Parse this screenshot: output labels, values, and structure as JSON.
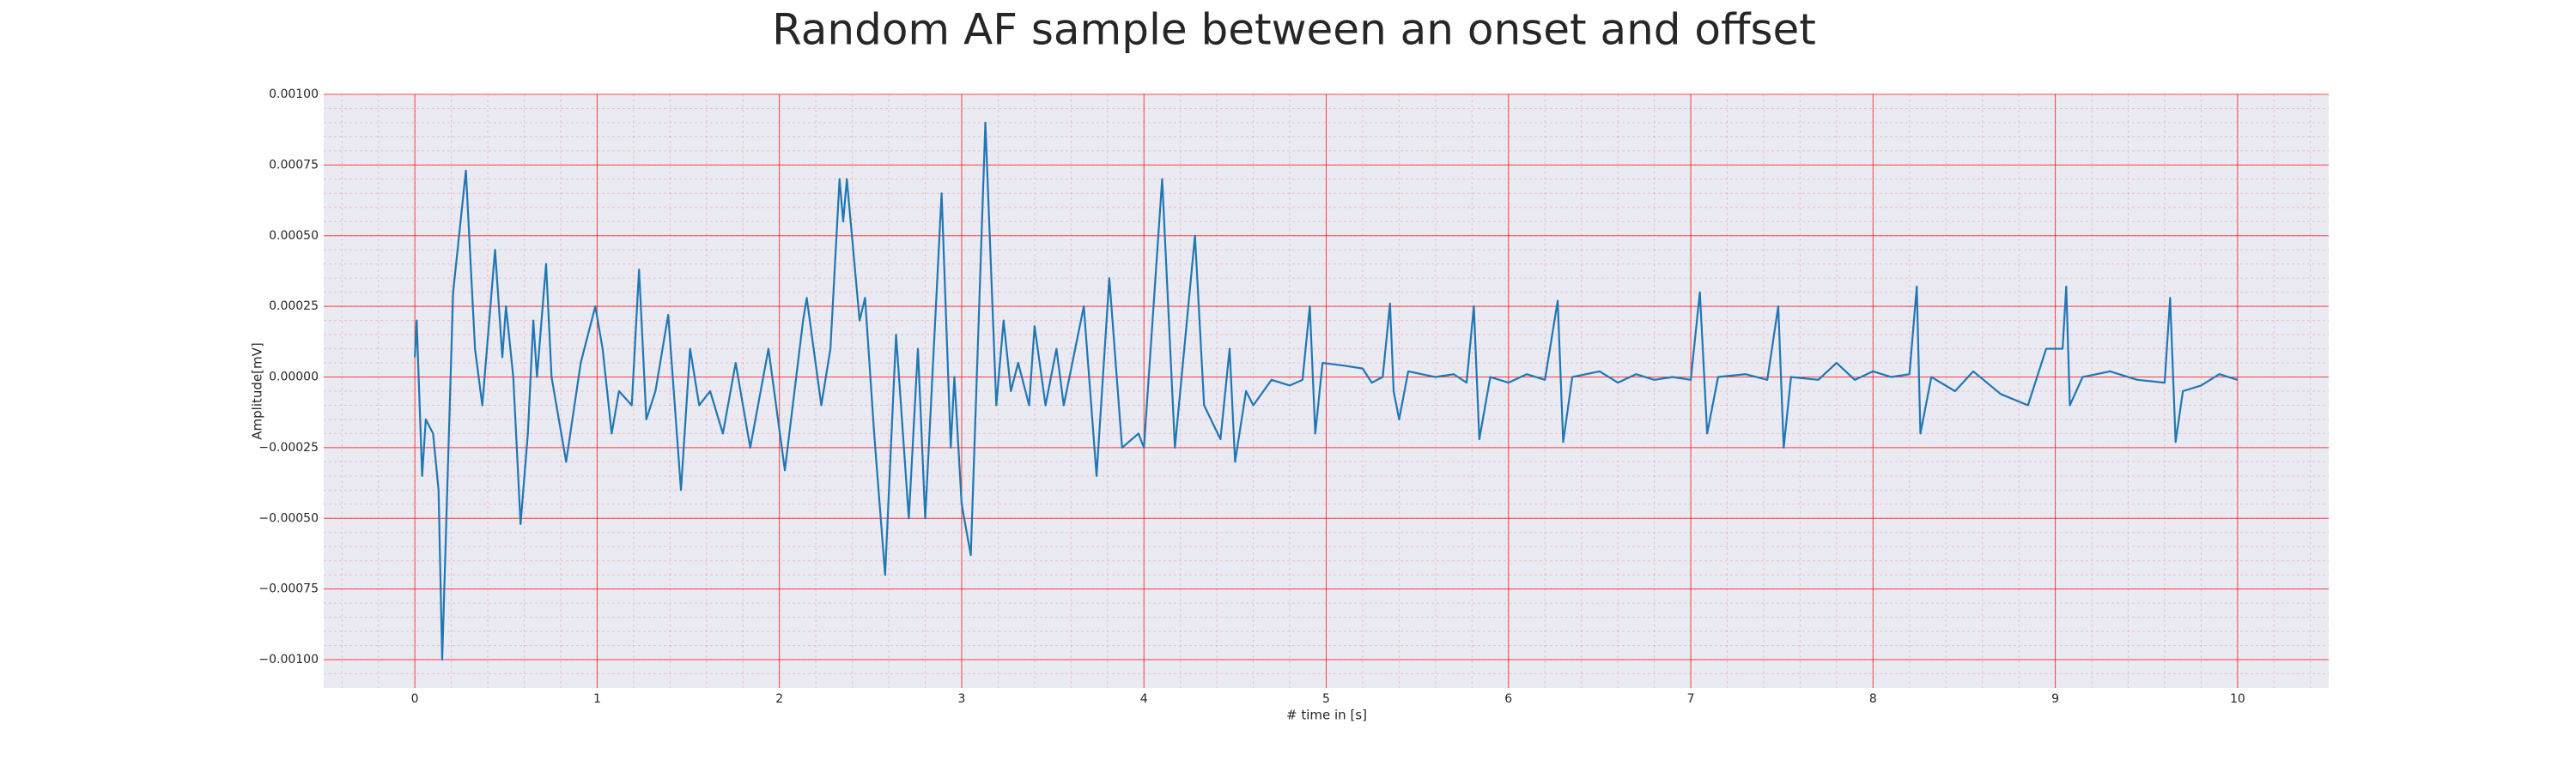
{
  "chart_data": {
    "type": "line",
    "title": "Random AF sample between an onset and offset",
    "xlabel": "# time in [s]",
    "ylabel": "Amplitude[mV]",
    "xlim": [
      -0.5,
      10.5
    ],
    "ylim": [
      -0.0011,
      0.001
    ],
    "xticks": [
      0,
      1,
      2,
      3,
      4,
      5,
      6,
      7,
      8,
      9,
      10
    ],
    "yticks": [
      {
        "value": -0.001,
        "label": "−0.00100"
      },
      {
        "value": -0.00075,
        "label": "−0.00075"
      },
      {
        "value": -0.0005,
        "label": "−0.00050"
      },
      {
        "value": -0.00025,
        "label": "−0.00025"
      },
      {
        "value": 0,
        "label": "0.00000"
      },
      {
        "value": 0.00025,
        "label": "0.00025"
      },
      {
        "value": 0.0005,
        "label": "0.00050"
      },
      {
        "value": 0.00075,
        "label": "0.00075"
      },
      {
        "value": 0.001,
        "label": "0.00100"
      }
    ],
    "grid": true,
    "grid_color": "#ff0000",
    "minor_grid": 5,
    "background": "#eaeaf2",
    "x": [
      0,
      0.01,
      0.04,
      0.06,
      0.1,
      0.13,
      0.15,
      0.21,
      0.28,
      0.33,
      0.37,
      0.44,
      0.48,
      0.5,
      0.54,
      0.58,
      0.62,
      0.65,
      0.67,
      0.72,
      0.75,
      0.83,
      0.91,
      0.99,
      1.03,
      1.08,
      1.12,
      1.19,
      1.23,
      1.27,
      1.32,
      1.39,
      1.46,
      1.51,
      1.56,
      1.62,
      1.69,
      1.76,
      1.8,
      1.84,
      1.94,
      2.03,
      2.13,
      2.15,
      2.23,
      2.28,
      2.33,
      2.35,
      2.37,
      2.44,
      2.47,
      2.52,
      2.58,
      2.64,
      2.71,
      2.76,
      2.8,
      2.89,
      2.94,
      2.96,
      3.0,
      3.05,
      3.13,
      3.19,
      3.23,
      3.27,
      3.31,
      3.37,
      3.4,
      3.46,
      3.52,
      3.56,
      3.67,
      3.74,
      3.81,
      3.88,
      3.97,
      4.0,
      4.1,
      4.17,
      4.28,
      4.33,
      4.42,
      4.47,
      4.5,
      4.56,
      4.6,
      4.7,
      4.8,
      4.87,
      4.91,
      4.94,
      4.98,
      5.1,
      5.2,
      5.25,
      5.31,
      5.35,
      5.37,
      5.4,
      5.45,
      5.6,
      5.7,
      5.77,
      5.81,
      5.84,
      5.9,
      6.0,
      6.1,
      6.2,
      6.27,
      6.3,
      6.35,
      6.5,
      6.6,
      6.7,
      6.8,
      6.9,
      7.0,
      7.05,
      7.09,
      7.15,
      7.3,
      7.42,
      7.48,
      7.51,
      7.55,
      7.7,
      7.8,
      7.9,
      8.0,
      8.1,
      8.2,
      8.24,
      8.26,
      8.32,
      8.45,
      8.55,
      8.7,
      8.85,
      8.95,
      9.04,
      9.06,
      9.08,
      9.15,
      9.3,
      9.45,
      9.6,
      9.63,
      9.66,
      9.7,
      9.8,
      9.9,
      10.0
    ],
    "series": [
      {
        "color": "#1f77b4",
        "values": [
          7e-05,
          0.0002,
          -0.00035,
          -0.00015,
          -0.0002,
          -0.0004,
          -0.001,
          0.0003,
          0.00073,
          0.0001,
          -0.0001,
          0.00045,
          7e-05,
          0.00025,
          0,
          -0.00052,
          -0.0002,
          0.0002,
          0,
          0.0004,
          0,
          -0.0003,
          5e-05,
          0.00025,
          0.0001,
          -0.0002,
          -5e-05,
          -0.0001,
          0.00038,
          -0.00015,
          -5e-05,
          0.00022,
          -0.0004,
          0.0001,
          -0.0001,
          -5e-05,
          -0.0002,
          5e-05,
          -0.0001,
          -0.00025,
          0.0001,
          -0.00033,
          0.0002,
          0.00028,
          -0.0001,
          0.0001,
          0.0007,
          0.00055,
          0.0007,
          0.0002,
          0.00028,
          -0.0002,
          -0.0007,
          0.00015,
          -0.0005,
          0.0001,
          -0.0005,
          0.00065,
          -0.00025,
          0,
          -0.00045,
          -0.00063,
          0.0009,
          -0.0001,
          0.0002,
          -5e-05,
          5e-05,
          -0.0001,
          0.00018,
          -0.0001,
          0.0001,
          -0.0001,
          0.00025,
          -0.00035,
          0.00035,
          -0.00025,
          -0.0002,
          -0.00025,
          0.0007,
          -0.00025,
          0.0005,
          -0.0001,
          -0.00022,
          0.0001,
          -0.0003,
          -5e-05,
          -0.0001,
          -1e-05,
          -3e-05,
          -1e-05,
          0.00025,
          -0.0002,
          5e-05,
          4e-05,
          3e-05,
          -2e-05,
          0,
          0.00026,
          -5e-05,
          -0.00015,
          2e-05,
          0,
          1e-05,
          -2e-05,
          0.00025,
          -0.00022,
          0,
          -2e-05,
          1e-05,
          -1e-05,
          0.00027,
          -0.00023,
          0,
          2e-05,
          -2e-05,
          1e-05,
          -1e-05,
          0,
          -1e-05,
          0.0003,
          -0.0002,
          0,
          1e-05,
          -1e-05,
          0.00025,
          -0.00025,
          0,
          -1e-05,
          5e-05,
          -1e-05,
          2e-05,
          0,
          1e-05,
          0.00032,
          -0.0002,
          0,
          -5e-05,
          2e-05,
          -6e-05,
          -0.0001,
          0.0001,
          0.0001,
          0.00032,
          -0.0001,
          0,
          2e-05,
          -1e-05,
          -2e-05,
          0.00028,
          -0.00023,
          -5e-05,
          -3e-05,
          1e-05,
          -1e-05
        ]
      }
    ]
  }
}
